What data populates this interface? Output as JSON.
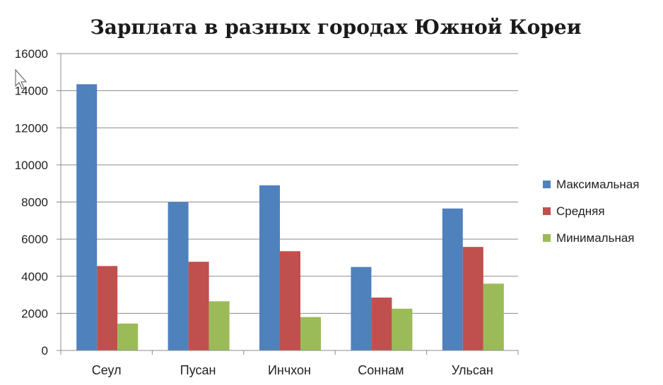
{
  "chart_data": {
    "type": "bar",
    "title": "Зарплата в разных городах Южной Кореи",
    "categories": [
      "Сеул",
      "Пусан",
      "Инчхон",
      "Соннам",
      "Ульсан"
    ],
    "series": [
      {
        "name": "Максимальная",
        "color": "#4f81bd",
        "values": [
          14350,
          8000,
          8900,
          4500,
          7650
        ]
      },
      {
        "name": "Средняя",
        "color": "#c0504d",
        "values": [
          4550,
          4780,
          5350,
          2850,
          5580
        ]
      },
      {
        "name": "Минимальная",
        "color": "#9bbb59",
        "values": [
          1450,
          2650,
          1800,
          2250,
          3600
        ]
      }
    ],
    "ylim": [
      0,
      16000
    ],
    "yticks": [
      0,
      2000,
      4000,
      6000,
      8000,
      10000,
      12000,
      14000,
      16000
    ],
    "grid": true,
    "legend_position": "right"
  }
}
